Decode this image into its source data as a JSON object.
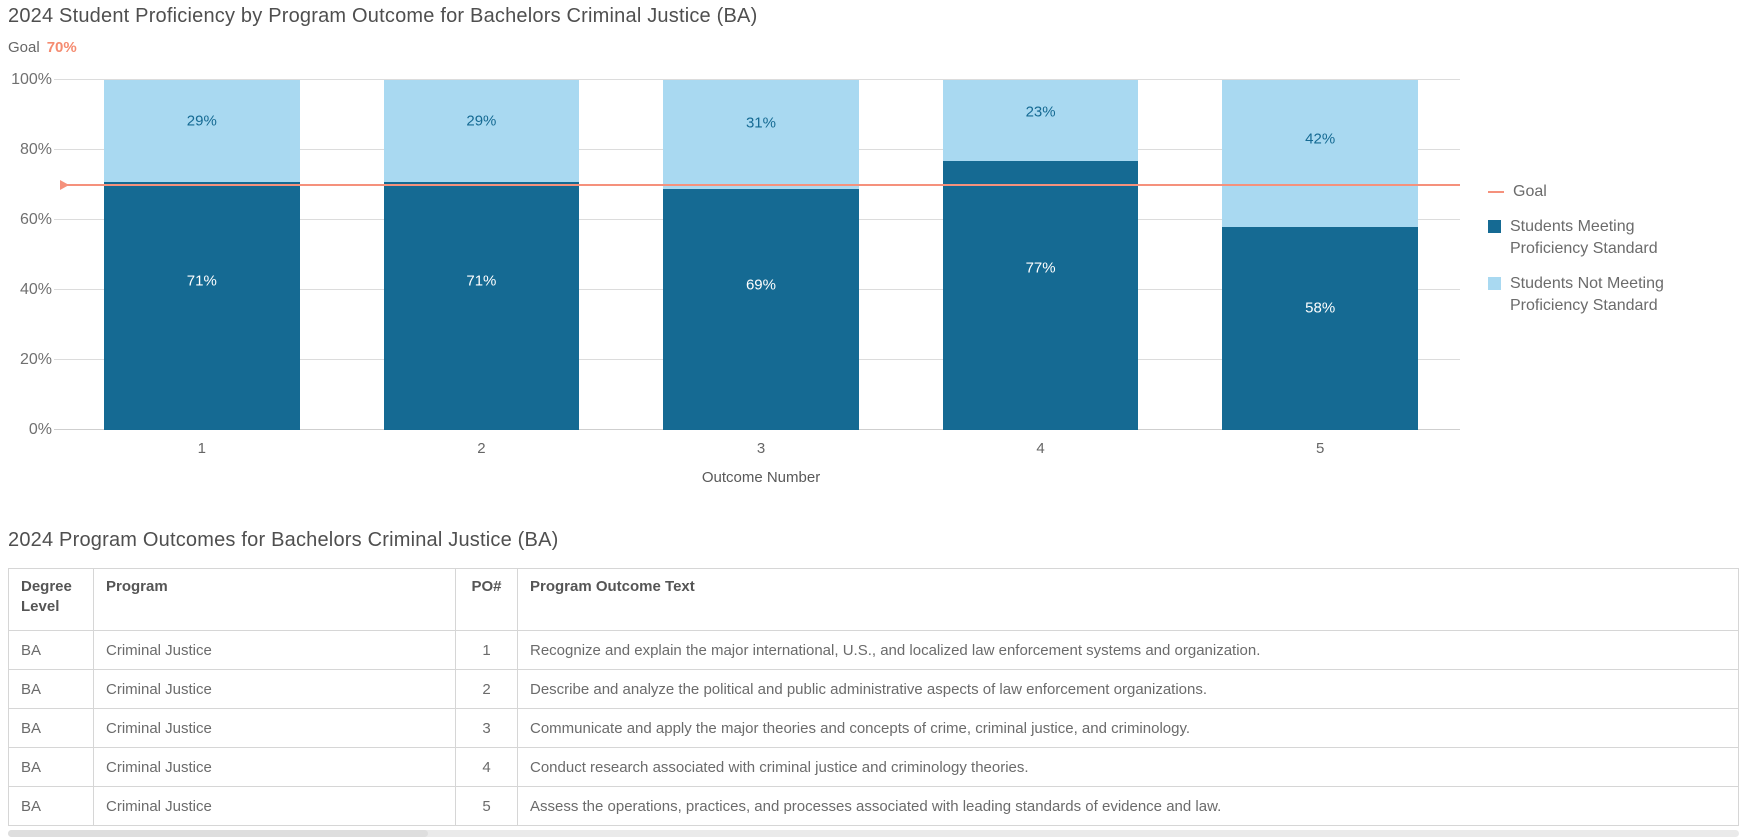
{
  "chart": {
    "title": "2024 Student Proficiency by Program Outcome for Bachelors Criminal Justice (BA)",
    "goal_caption_label": "Goal",
    "goal_caption_value": "70%"
  },
  "chart_data": {
    "type": "bar",
    "stacked": true,
    "title": "2024 Student Proficiency by Program Outcome for Bachelors Criminal Justice (BA)",
    "xlabel": "Outcome Number",
    "ylabel": "",
    "categories": [
      "1",
      "2",
      "3",
      "4",
      "5"
    ],
    "series": [
      {
        "name": "Students Meeting Proficiency Standard",
        "color": "#156a93",
        "label_color": "#ffffff",
        "values": [
          71,
          71,
          69,
          77,
          58
        ]
      },
      {
        "name": "Students Not Meeting Proficiency Standard",
        "color": "#a9d9f1",
        "label_color": "#156a93",
        "values": [
          29,
          29,
          31,
          23,
          42
        ]
      }
    ],
    "goal_line": {
      "label": "Goal",
      "value": 70,
      "display": "70%",
      "color": "#f5917c"
    },
    "ylim": [
      0,
      100
    ],
    "yticks": [
      {
        "label": "0%",
        "value": 0
      },
      {
        "label": "20%",
        "value": 20
      },
      {
        "label": "40%",
        "value": 40
      },
      {
        "label": "60%",
        "value": 60
      },
      {
        "label": "80%",
        "value": 80
      },
      {
        "label": "100%",
        "value": 100
      }
    ],
    "grid": true,
    "legend_position": "right",
    "legend": [
      {
        "label": "Goal",
        "swatch": "line",
        "color": "#f5917c"
      },
      {
        "label": "Students Meeting Proficiency Standard",
        "swatch": "square",
        "color": "#156a93"
      },
      {
        "label": "Students Not Meeting Proficiency Standard",
        "swatch": "square",
        "color": "#a9d9f1"
      }
    ]
  },
  "table_section": {
    "title": "2024 Program Outcomes for Bachelors Criminal Justice (BA)",
    "columns": [
      "Degree Level",
      "Program",
      "PO#",
      "Program Outcome Text"
    ],
    "column_keys": [
      "degree-level",
      "program",
      "po-number",
      "outcome-text"
    ],
    "rows": [
      [
        "BA",
        "Criminal Justice",
        "1",
        "Recognize and explain the major international, U.S., and localized law enforcement systems and organization."
      ],
      [
        "BA",
        "Criminal Justice",
        "2",
        "Describe and analyze the political and public administrative aspects of law enforcement organizations."
      ],
      [
        "BA",
        "Criminal Justice",
        "3",
        "Communicate and apply the major theories and concepts of crime, criminal justice, and criminology."
      ],
      [
        "BA",
        "Criminal Justice",
        "4",
        "Conduct research associated with criminal justice and criminology theories."
      ],
      [
        "BA",
        "Criminal Justice",
        "5",
        "Assess the operations, practices, and processes associated with leading standards of evidence and law."
      ]
    ]
  },
  "colors": {
    "bar_dark": "#156a93",
    "bar_light": "#a9d9f1",
    "goal": "#f5917c",
    "grid": "#dcdcdc",
    "title_text": "#4f4f4f",
    "body_text": "#6b6b6b"
  }
}
